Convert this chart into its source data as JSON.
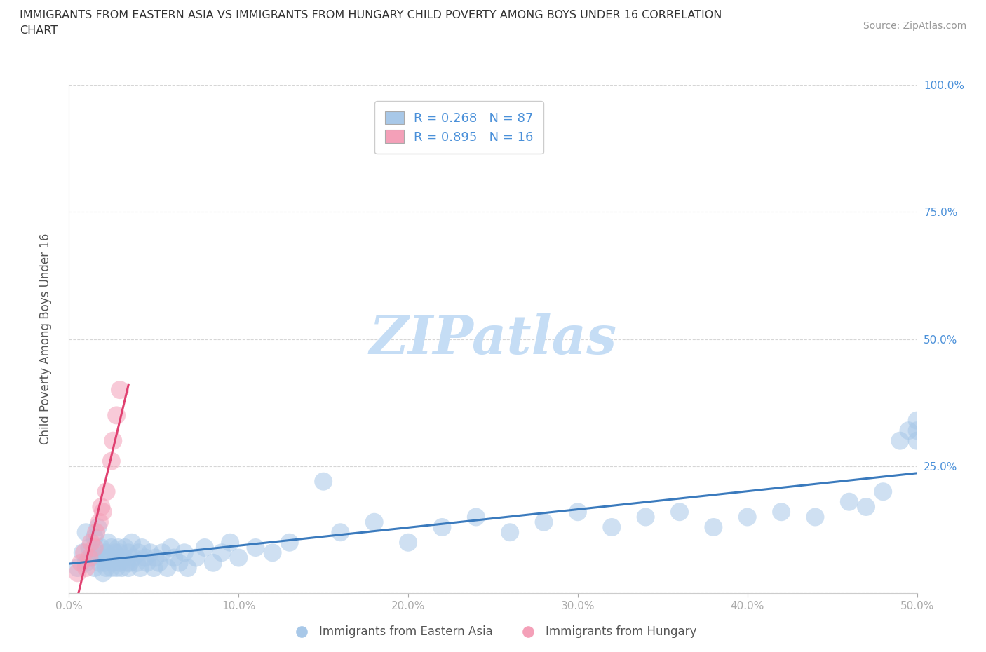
{
  "title": "IMMIGRANTS FROM EASTERN ASIA VS IMMIGRANTS FROM HUNGARY CHILD POVERTY AMONG BOYS UNDER 16 CORRELATION\nCHART",
  "source": "Source: ZipAtlas.com",
  "ylabel": "Child Poverty Among Boys Under 16",
  "watermark": "ZIPatlas",
  "xlim": [
    0.0,
    0.5
  ],
  "ylim": [
    0.0,
    1.0
  ],
  "blue_color": "#a8c8e8",
  "pink_color": "#f4a0b8",
  "blue_line_color": "#3a7abd",
  "pink_line_color": "#e04070",
  "R_blue": 0.268,
  "N_blue": 87,
  "R_pink": 0.895,
  "N_pink": 16,
  "blue_scatter_x": [
    0.005,
    0.008,
    0.01,
    0.01,
    0.012,
    0.013,
    0.015,
    0.015,
    0.016,
    0.017,
    0.018,
    0.019,
    0.02,
    0.02,
    0.021,
    0.022,
    0.022,
    0.023,
    0.024,
    0.025,
    0.025,
    0.026,
    0.027,
    0.028,
    0.028,
    0.029,
    0.03,
    0.03,
    0.031,
    0.032,
    0.033,
    0.034,
    0.035,
    0.035,
    0.036,
    0.037,
    0.038,
    0.04,
    0.041,
    0.042,
    0.043,
    0.045,
    0.046,
    0.048,
    0.05,
    0.051,
    0.053,
    0.055,
    0.058,
    0.06,
    0.062,
    0.065,
    0.068,
    0.07,
    0.075,
    0.08,
    0.085,
    0.09,
    0.095,
    0.1,
    0.11,
    0.12,
    0.13,
    0.15,
    0.16,
    0.18,
    0.2,
    0.22,
    0.24,
    0.26,
    0.28,
    0.3,
    0.32,
    0.34,
    0.36,
    0.38,
    0.4,
    0.42,
    0.44,
    0.46,
    0.47,
    0.48,
    0.49,
    0.495,
    0.5,
    0.5,
    0.5
  ],
  "blue_scatter_y": [
    0.05,
    0.08,
    0.12,
    0.06,
    0.09,
    0.07,
    0.05,
    0.11,
    0.08,
    0.13,
    0.06,
    0.09,
    0.07,
    0.04,
    0.06,
    0.08,
    0.05,
    0.1,
    0.07,
    0.05,
    0.09,
    0.06,
    0.08,
    0.05,
    0.07,
    0.09,
    0.06,
    0.08,
    0.05,
    0.07,
    0.09,
    0.06,
    0.05,
    0.08,
    0.06,
    0.1,
    0.07,
    0.06,
    0.08,
    0.05,
    0.09,
    0.07,
    0.06,
    0.08,
    0.05,
    0.07,
    0.06,
    0.08,
    0.05,
    0.09,
    0.07,
    0.06,
    0.08,
    0.05,
    0.07,
    0.09,
    0.06,
    0.08,
    0.1,
    0.07,
    0.09,
    0.08,
    0.1,
    0.22,
    0.12,
    0.14,
    0.1,
    0.13,
    0.15,
    0.12,
    0.14,
    0.16,
    0.13,
    0.15,
    0.16,
    0.13,
    0.15,
    0.16,
    0.15,
    0.18,
    0.17,
    0.2,
    0.3,
    0.32,
    0.3,
    0.32,
    0.34
  ],
  "pink_scatter_x": [
    0.005,
    0.007,
    0.009,
    0.01,
    0.012,
    0.013,
    0.015,
    0.016,
    0.018,
    0.019,
    0.02,
    0.022,
    0.025,
    0.026,
    0.028,
    0.03
  ],
  "pink_scatter_y": [
    0.04,
    0.06,
    0.08,
    0.05,
    0.07,
    0.1,
    0.09,
    0.12,
    0.14,
    0.17,
    0.16,
    0.2,
    0.26,
    0.3,
    0.35,
    0.4
  ],
  "background_color": "#ffffff",
  "grid_color": "#cccccc",
  "watermark_color": "#c5ddf5"
}
